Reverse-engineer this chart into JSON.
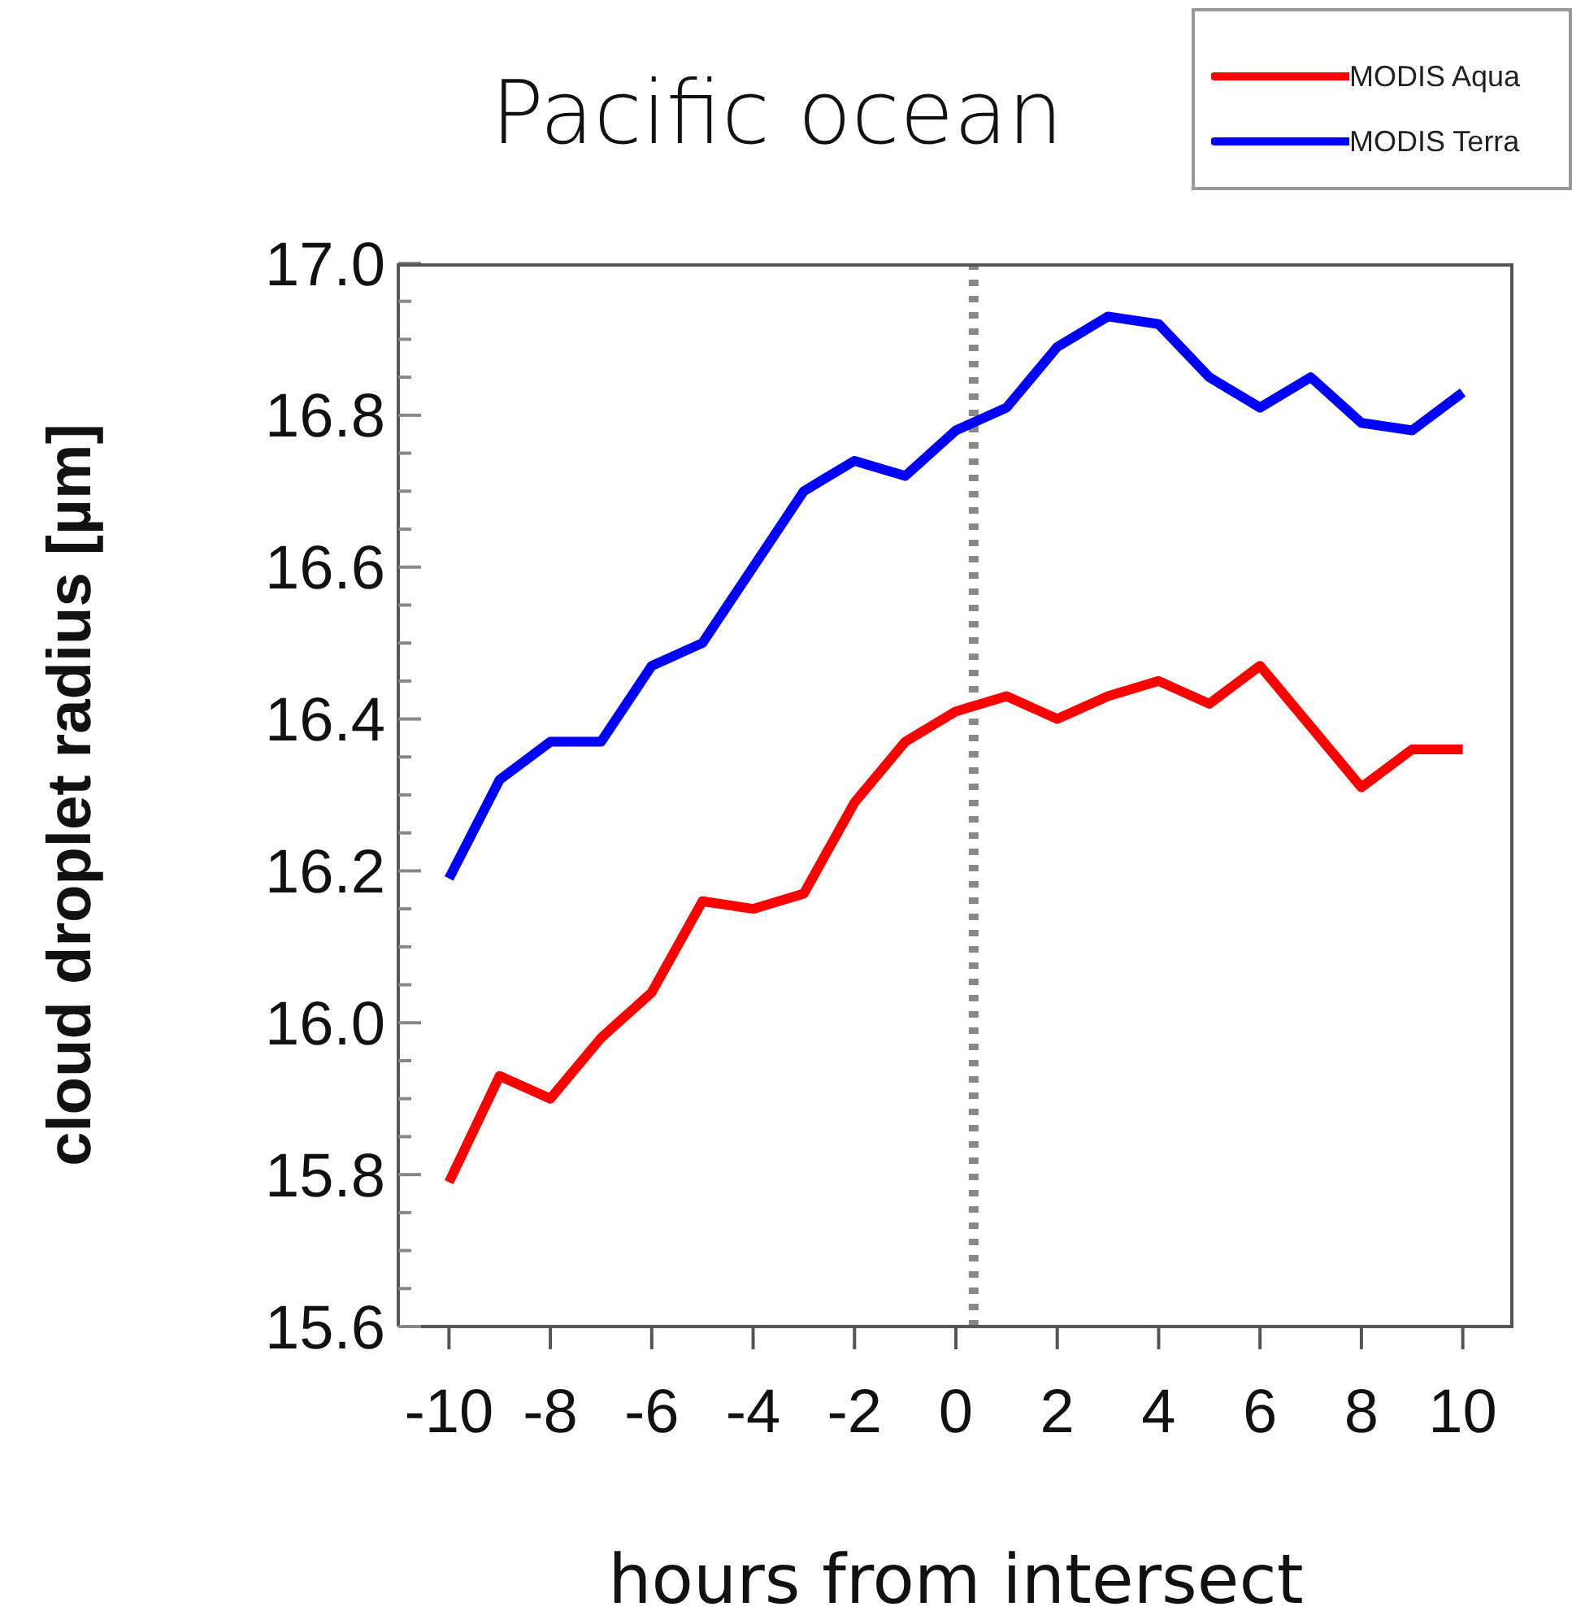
{
  "chart_data": {
    "type": "line",
    "title": "Pacific ocean",
    "xlabel": "hours from intersect",
    "ylabel": "cloud droplet radius [µm]",
    "x": [
      -10,
      -9,
      -8,
      -7,
      -6,
      -5,
      -4,
      -3,
      -2,
      -1,
      0,
      1,
      2,
      3,
      4,
      5,
      6,
      7,
      8,
      9,
      10
    ],
    "series": [
      {
        "name": "MODIS Aqua",
        "color": "#ff0000",
        "values": [
          15.79,
          15.93,
          15.9,
          15.98,
          16.04,
          16.16,
          16.15,
          16.17,
          16.29,
          16.37,
          16.41,
          16.43,
          16.4,
          16.43,
          16.45,
          16.42,
          16.47,
          16.39,
          16.31,
          16.36,
          16.36
        ]
      },
      {
        "name": "MODIS Terra",
        "color": "#0000ff",
        "values": [
          16.19,
          16.32,
          16.37,
          16.37,
          16.47,
          16.5,
          16.6,
          16.7,
          16.74,
          16.72,
          16.78,
          16.81,
          16.89,
          16.93,
          16.92,
          16.85,
          16.81,
          16.85,
          16.79,
          16.78,
          16.83
        ]
      }
    ],
    "xlim": [
      -11,
      11
    ],
    "xticks": [
      -10,
      -8,
      -6,
      -4,
      -2,
      0,
      2,
      4,
      6,
      8,
      10
    ],
    "ylim": [
      15.6,
      17.0
    ],
    "yticks": [
      {
        "value": 15.6,
        "label": "15.6"
      },
      {
        "value": 15.65,
        "label": null
      },
      {
        "value": 15.7,
        "label": null
      },
      {
        "value": 15.75,
        "label": null
      },
      {
        "value": 15.8,
        "label": "15.8"
      },
      {
        "value": 15.85,
        "label": null
      },
      {
        "value": 15.9,
        "label": null
      },
      {
        "value": 15.95,
        "label": null
      },
      {
        "value": 16.0,
        "label": "16.0"
      },
      {
        "value": 16.05,
        "label": null
      },
      {
        "value": 16.1,
        "label": null
      },
      {
        "value": 16.15,
        "label": null
      },
      {
        "value": 16.2,
        "label": "16.2"
      },
      {
        "value": 16.25,
        "label": null
      },
      {
        "value": 16.3,
        "label": null
      },
      {
        "value": 16.35,
        "label": null
      },
      {
        "value": 16.4,
        "label": "16.4"
      },
      {
        "value": 16.45,
        "label": null
      },
      {
        "value": 16.5,
        "label": null
      },
      {
        "value": 16.55,
        "label": null
      },
      {
        "value": 16.6,
        "label": "16.6"
      },
      {
        "value": 16.65,
        "label": null
      },
      {
        "value": 16.7,
        "label": null
      },
      {
        "value": 16.75,
        "label": null
      },
      {
        "value": 16.8,
        "label": "16.8"
      },
      {
        "value": 16.85,
        "label": null
      },
      {
        "value": 16.9,
        "label": null
      },
      {
        "value": 16.95,
        "label": null
      },
      {
        "value": 17.0,
        "label": "17.0"
      }
    ],
    "ref_lines": [
      {
        "axis": "x",
        "value": 0.35,
        "color": "#888888",
        "line_style": "dotted"
      }
    ],
    "grid": false,
    "legend": "top right",
    "marker": "none",
    "line_style": "solid"
  }
}
